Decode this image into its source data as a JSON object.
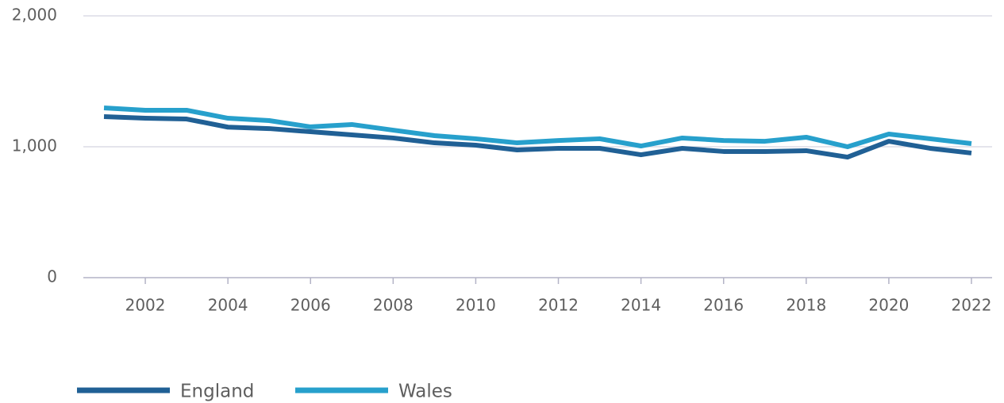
{
  "chart_data": {
    "type": "line",
    "x": [
      2001,
      2002,
      2003,
      2004,
      2005,
      2006,
      2007,
      2008,
      2009,
      2010,
      2011,
      2012,
      2013,
      2014,
      2015,
      2016,
      2017,
      2018,
      2019,
      2020,
      2021,
      2022
    ],
    "series": [
      {
        "name": "England",
        "color": "#206095",
        "values": [
          1230,
          1218,
          1212,
          1150,
          1139,
          1115,
          1091,
          1067,
          1030,
          1012,
          976,
          988,
          988,
          939,
          988,
          964,
          964,
          970,
          921,
          1042,
          988,
          952
        ]
      },
      {
        "name": "Wales",
        "color": "#27a0cc",
        "values": [
          1297,
          1279,
          1279,
          1218,
          1200,
          1152,
          1170,
          1127,
          1085,
          1061,
          1030,
          1048,
          1061,
          1006,
          1067,
          1048,
          1042,
          1073,
          1000,
          1097,
          1061,
          1024
        ]
      }
    ],
    "xlim": [
      2000.5,
      2022.5
    ],
    "xticks": [
      2002,
      2004,
      2006,
      2008,
      2010,
      2012,
      2014,
      2016,
      2018,
      2020,
      2022
    ],
    "ylim": [
      0,
      2000
    ],
    "yticks": [
      0,
      {
        "value": 1000,
        "label": "1,000"
      },
      {
        "value": 2000,
        "label": "2,000"
      }
    ],
    "grid": true,
    "legend": "bottom"
  }
}
